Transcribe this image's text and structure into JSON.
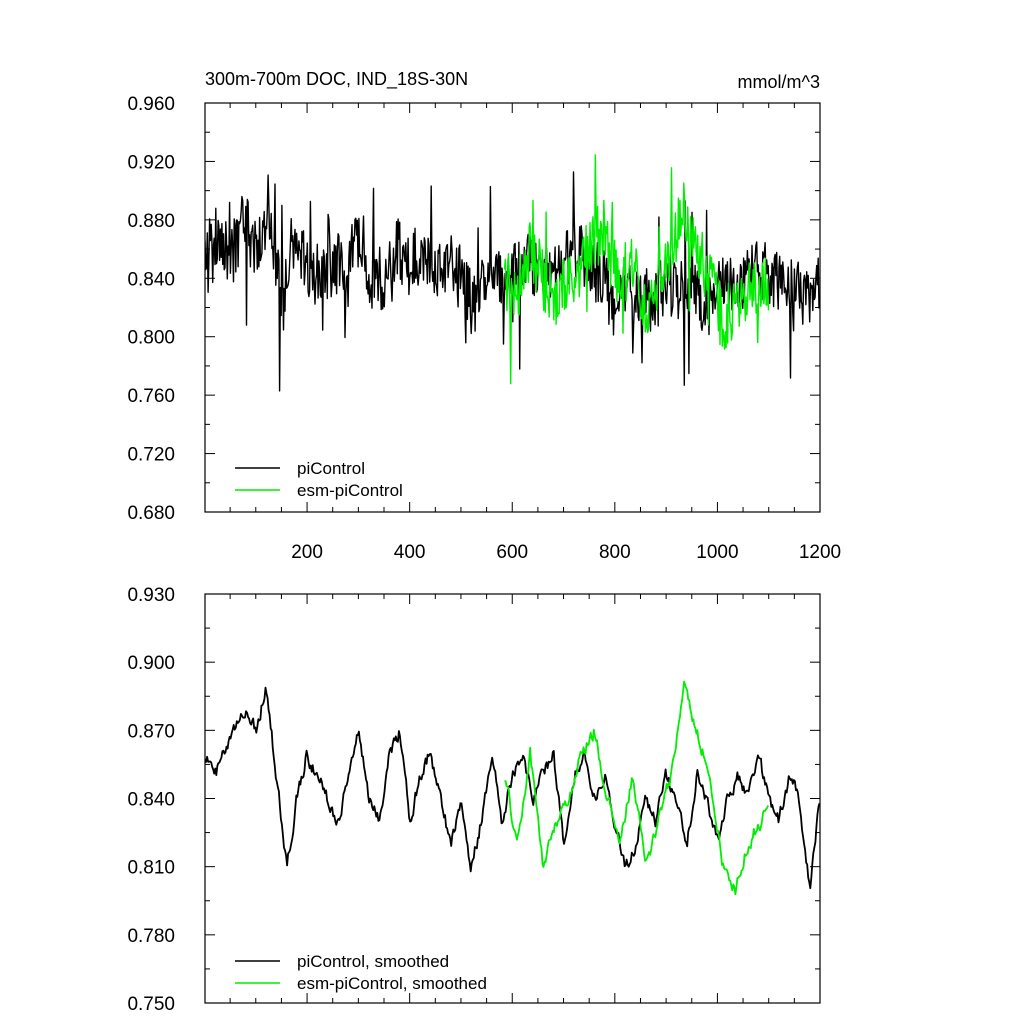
{
  "chart_data": [
    {
      "type": "line",
      "title": "300m-700m DOC, IND_18S-30N",
      "units": "mmol/m^3",
      "xlim": [
        1,
        1200
      ],
      "ylim": [
        0.68,
        0.96
      ],
      "x_ticks": [
        200,
        400,
        600,
        800,
        1000,
        1200
      ],
      "x_tick_labels": [
        "200",
        "400",
        "600",
        "800",
        "1000",
        "1200"
      ],
      "y_ticks": [
        0.68,
        0.72,
        0.76,
        0.8,
        0.84,
        0.88,
        0.92,
        0.96
      ],
      "y_tick_labels": [
        "0.680",
        "0.720",
        "0.760",
        "0.800",
        "0.840",
        "0.880",
        "0.920",
        "0.960"
      ],
      "legend_position": "bottom-left",
      "series": [
        {
          "name": "piControl",
          "color": "#000000",
          "x_range": [
            1,
            1200
          ],
          "points": [
            [
              1,
              0.86
            ],
            [
              25,
              0.87
            ],
            [
              50,
              0.85
            ],
            [
              75,
              0.88
            ],
            [
              100,
              0.86
            ],
            [
              125,
              0.89
            ],
            [
              150,
              0.82
            ],
            [
              175,
              0.86
            ],
            [
              200,
              0.85
            ],
            [
              225,
              0.84
            ],
            [
              250,
              0.85
            ],
            [
              275,
              0.85
            ],
            [
              300,
              0.88
            ],
            [
              325,
              0.84
            ],
            [
              350,
              0.84
            ],
            [
              375,
              0.86
            ],
            [
              400,
              0.85
            ],
            [
              425,
              0.86
            ],
            [
              450,
              0.84
            ],
            [
              475,
              0.85
            ],
            [
              500,
              0.84
            ],
            [
              525,
              0.82
            ],
            [
              550,
              0.84
            ],
            [
              575,
              0.84
            ],
            [
              600,
              0.84
            ],
            [
              625,
              0.85
            ],
            [
              650,
              0.85
            ],
            [
              675,
              0.84
            ],
            [
              700,
              0.85
            ],
            [
              725,
              0.86
            ],
            [
              750,
              0.85
            ],
            [
              775,
              0.84
            ],
            [
              800,
              0.82
            ],
            [
              825,
              0.83
            ],
            [
              850,
              0.83
            ],
            [
              875,
              0.82
            ],
            [
              900,
              0.84
            ],
            [
              925,
              0.83
            ],
            [
              950,
              0.84
            ],
            [
              975,
              0.82
            ],
            [
              1000,
              0.83
            ],
            [
              1025,
              0.84
            ],
            [
              1050,
              0.84
            ],
            [
              1075,
              0.85
            ],
            [
              1100,
              0.84
            ],
            [
              1125,
              0.84
            ],
            [
              1150,
              0.83
            ],
            [
              1175,
              0.83
            ],
            [
              1200,
              0.84
            ]
          ]
        },
        {
          "name": "esm-piControl",
          "color": "#00ee00",
          "x_range": [
            585,
            1100
          ],
          "points": [
            [
              585,
              0.84
            ],
            [
              610,
              0.83
            ],
            [
              635,
              0.86
            ],
            [
              660,
              0.84
            ],
            [
              685,
              0.83
            ],
            [
              710,
              0.84
            ],
            [
              735,
              0.85
            ],
            [
              760,
              0.87
            ],
            [
              785,
              0.86
            ],
            [
              810,
              0.84
            ],
            [
              835,
              0.85
            ],
            [
              860,
              0.82
            ],
            [
              885,
              0.83
            ],
            [
              910,
              0.86
            ],
            [
              935,
              0.89
            ],
            [
              960,
              0.86
            ],
            [
              985,
              0.84
            ],
            [
              1010,
              0.81
            ],
            [
              1035,
              0.82
            ],
            [
              1060,
              0.83
            ],
            [
              1085,
              0.84
            ],
            [
              1100,
              0.84
            ]
          ]
        }
      ]
    },
    {
      "type": "line",
      "xlim": [
        1,
        1200
      ],
      "ylim": [
        0.75,
        0.93
      ],
      "y_ticks": [
        0.75,
        0.78,
        0.81,
        0.84,
        0.87,
        0.9,
        0.93
      ],
      "y_tick_labels": [
        "0.750",
        "0.780",
        "0.810",
        "0.840",
        "0.870",
        "0.900",
        "0.930"
      ],
      "legend_position": "bottom-left",
      "series": [
        {
          "name": "piControl, smoothed",
          "color": "#000000",
          "x_range": [
            1,
            1200
          ],
          "points": [
            [
              1,
              0.86
            ],
            [
              20,
              0.85
            ],
            [
              40,
              0.86
            ],
            [
              60,
              0.87
            ],
            [
              80,
              0.88
            ],
            [
              100,
              0.87
            ],
            [
              120,
              0.89
            ],
            [
              140,
              0.85
            ],
            [
              160,
              0.81
            ],
            [
              180,
              0.84
            ],
            [
              200,
              0.86
            ],
            [
              220,
              0.85
            ],
            [
              240,
              0.84
            ],
            [
              260,
              0.83
            ],
            [
              280,
              0.85
            ],
            [
              300,
              0.87
            ],
            [
              320,
              0.84
            ],
            [
              340,
              0.83
            ],
            [
              360,
              0.86
            ],
            [
              380,
              0.87
            ],
            [
              400,
              0.83
            ],
            [
              420,
              0.85
            ],
            [
              440,
              0.86
            ],
            [
              460,
              0.84
            ],
            [
              480,
              0.82
            ],
            [
              500,
              0.84
            ],
            [
              520,
              0.81
            ],
            [
              540,
              0.83
            ],
            [
              560,
              0.86
            ],
            [
              580,
              0.83
            ],
            [
              600,
              0.85
            ],
            [
              620,
              0.86
            ],
            [
              640,
              0.84
            ],
            [
              660,
              0.85
            ],
            [
              680,
              0.86
            ],
            [
              700,
              0.82
            ],
            [
              720,
              0.85
            ],
            [
              740,
              0.86
            ],
            [
              760,
              0.84
            ],
            [
              780,
              0.85
            ],
            [
              800,
              0.83
            ],
            [
              820,
              0.81
            ],
            [
              840,
              0.82
            ],
            [
              860,
              0.84
            ],
            [
              880,
              0.83
            ],
            [
              900,
              0.85
            ],
            [
              920,
              0.84
            ],
            [
              940,
              0.82
            ],
            [
              960,
              0.85
            ],
            [
              980,
              0.84
            ],
            [
              1000,
              0.82
            ],
            [
              1020,
              0.84
            ],
            [
              1040,
              0.85
            ],
            [
              1060,
              0.84
            ],
            [
              1080,
              0.86
            ],
            [
              1100,
              0.84
            ],
            [
              1120,
              0.83
            ],
            [
              1140,
              0.85
            ],
            [
              1160,
              0.84
            ],
            [
              1180,
              0.8
            ],
            [
              1200,
              0.84
            ]
          ]
        },
        {
          "name": "esm-piControl, smoothed",
          "color": "#00ee00",
          "x_range": [
            585,
            1100
          ],
          "points": [
            [
              585,
              0.85
            ],
            [
              610,
              0.82
            ],
            [
              635,
              0.86
            ],
            [
              660,
              0.81
            ],
            [
              685,
              0.83
            ],
            [
              710,
              0.84
            ],
            [
              735,
              0.86
            ],
            [
              760,
              0.87
            ],
            [
              785,
              0.84
            ],
            [
              810,
              0.82
            ],
            [
              835,
              0.85
            ],
            [
              860,
              0.81
            ],
            [
              885,
              0.83
            ],
            [
              910,
              0.85
            ],
            [
              935,
              0.89
            ],
            [
              960,
              0.87
            ],
            [
              985,
              0.85
            ],
            [
              1010,
              0.81
            ],
            [
              1035,
              0.8
            ],
            [
              1060,
              0.82
            ],
            [
              1085,
              0.83
            ],
            [
              1100,
              0.84
            ]
          ]
        }
      ]
    }
  ]
}
